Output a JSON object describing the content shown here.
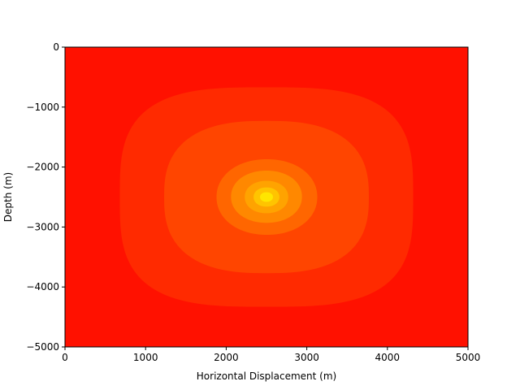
{
  "chart_data": {
    "type": "contourf",
    "title": "",
    "xlabel": "Horizontal Displacement (m)",
    "ylabel": "Depth (m)",
    "xlim": [
      0,
      5000
    ],
    "ylim": [
      -5000,
      0
    ],
    "x_ticks": [
      0,
      1000,
      2000,
      3000,
      4000,
      5000
    ],
    "y_ticks": [
      0,
      -1000,
      -2000,
      -3000,
      -4000,
      -5000
    ],
    "x_tick_labels": [
      "0",
      "1000",
      "2000",
      "3000",
      "4000",
      "5000"
    ],
    "y_tick_labels": [
      "0",
      "−1000",
      "−2000",
      "−3000",
      "−4000",
      "−5000"
    ],
    "grid": false,
    "colormap": "autumn",
    "contours": [
      {
        "level": 0,
        "color": "#ff1100",
        "x_range": [
          0,
          5000
        ],
        "y_range": [
          -5000,
          0
        ]
      },
      {
        "level": 1,
        "color": "#ff2a00",
        "x_range": [
          680,
          4320
        ],
        "y_range": [
          -4330,
          -670
        ]
      },
      {
        "level": 2,
        "color": "#ff4500",
        "x_range": [
          1230,
          3770
        ],
        "y_range": [
          -3770,
          -1230
        ]
      },
      {
        "level": 3,
        "color": "#ff6600",
        "x_range": [
          1880,
          3130
        ],
        "y_range": [
          -3130,
          -1870
        ]
      },
      {
        "level": 4,
        "color": "#ff8800",
        "x_range": [
          2060,
          2940
        ],
        "y_range": [
          -2930,
          -2060
        ]
      },
      {
        "level": 5,
        "color": "#ffa300",
        "x_range": [
          2230,
          2770
        ],
        "y_range": [
          -2770,
          -2230
        ]
      },
      {
        "level": 6,
        "color": "#ffc400",
        "x_range": [
          2340,
          2660
        ],
        "y_range": [
          -2660,
          -2340
        ]
      },
      {
        "level": 7,
        "color": "#ffe600",
        "x_range": [
          2420,
          2580
        ],
        "y_range": [
          -2580,
          -2420
        ]
      }
    ]
  }
}
